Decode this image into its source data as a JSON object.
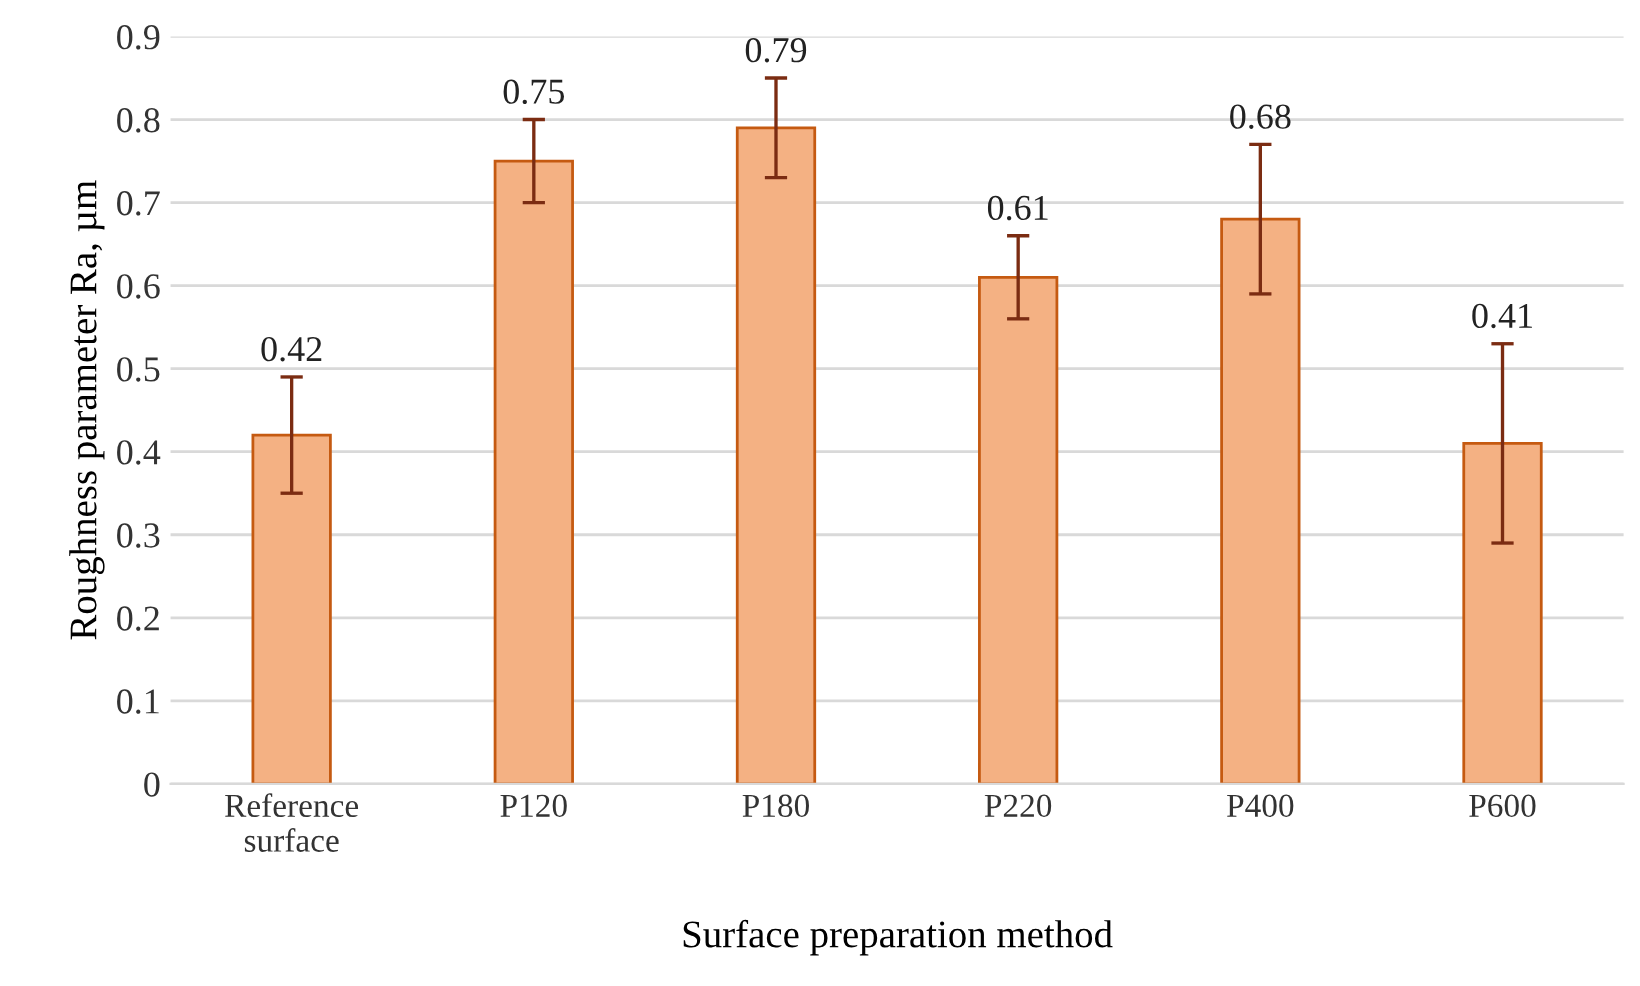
{
  "chart_data": {
    "type": "bar",
    "xlabel": "Surface preparation method",
    "ylabel": "Roughness parameter Ra, µm",
    "categories": [
      "Reference\nsurface",
      "P120",
      "P180",
      "P220",
      "P400",
      "P600"
    ],
    "series": [
      {
        "color": "#f4b183",
        "values": [
          0.42,
          0.75,
          0.79,
          0.61,
          0.68,
          0.41
        ],
        "errors": [
          0.07,
          0.05,
          0.06,
          0.05,
          0.09,
          0.12
        ]
      }
    ],
    "ylim": [
      0,
      0.9
    ],
    "yticks": [
      {
        "value": 0,
        "label": "0"
      },
      0.1,
      0.2,
      0.3,
      0.4,
      0.5,
      0.6,
      0.7,
      0.8,
      0.9
    ],
    "grid": "y",
    "data_labels": true
  }
}
